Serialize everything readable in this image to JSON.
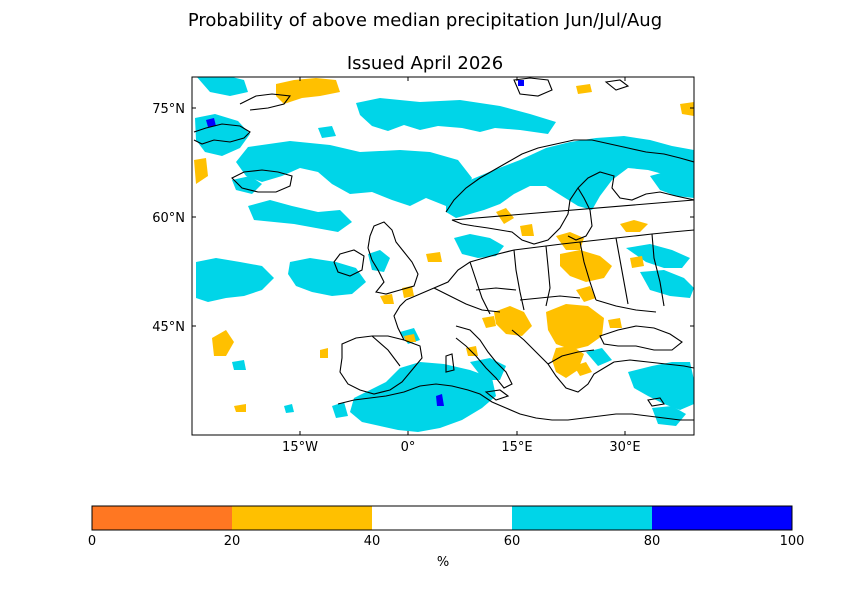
{
  "title_line1": "Probability of above median precipitation Jun/Jul/Aug",
  "title_line2": "Issued April 2026",
  "map": {
    "lat_ticks": [
      "75°N",
      "60°N",
      "45°N"
    ],
    "lon_ticks": [
      "15°W",
      "0°",
      "15°E",
      "30°E"
    ]
  },
  "colors": {
    "bin_0_20": "#ff7722",
    "bin_20_40": "#ffc000",
    "bin_40_60": "#ffffff",
    "bin_60_80": "#00d5e8",
    "bin_80_100": "#0000ff",
    "coastline": "#000000"
  },
  "colorbar": {
    "bins": [
      {
        "range": "0-20",
        "color": "#ff7722"
      },
      {
        "range": "20-40",
        "color": "#ffc000"
      },
      {
        "range": "40-60",
        "color": "#ffffff"
      },
      {
        "range": "60-80",
        "color": "#00d5e8"
      },
      {
        "range": "80-100",
        "color": "#0000ff"
      }
    ],
    "tick_labels": [
      "0",
      "20",
      "40",
      "60",
      "80",
      "100"
    ],
    "unit": "%"
  }
}
